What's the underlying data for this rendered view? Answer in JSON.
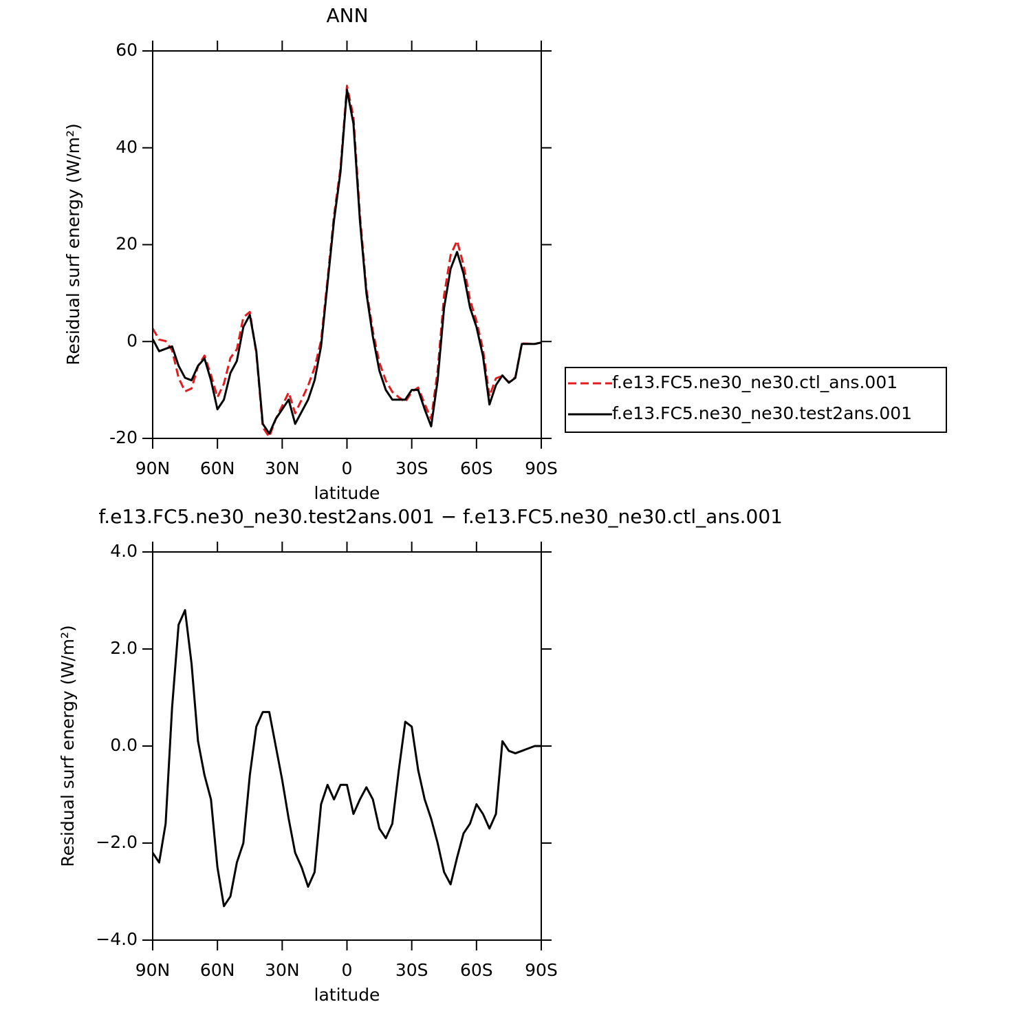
{
  "chart_data": [
    {
      "type": "line",
      "title": "ANN",
      "xlabel": "latitude",
      "ylabel": "Residual surf energy (W/m²)",
      "x": [
        90,
        87,
        84,
        81,
        78,
        75,
        72,
        69,
        66,
        63,
        60,
        57,
        54,
        51,
        48,
        45,
        42,
        39,
        36,
        33,
        30,
        27,
        24,
        21,
        18,
        15,
        12,
        9,
        6,
        3,
        0,
        -3,
        -6,
        -9,
        -12,
        -15,
        -18,
        -21,
        -24,
        -27,
        -30,
        -33,
        -36,
        -39,
        -42,
        -45,
        -48,
        -51,
        -54,
        -57,
        -60,
        -63,
        -66,
        -69,
        -72,
        -75,
        -78,
        -81,
        -84,
        -87,
        -90
      ],
      "xlim": [
        90,
        -90
      ],
      "xticks": [
        {
          "value": 90,
          "label": "90N"
        },
        {
          "value": 60,
          "label": "60N"
        },
        {
          "value": 30,
          "label": "30N"
        },
        0,
        {
          "value": -30,
          "label": "30S"
        },
        {
          "value": -60,
          "label": "60S"
        },
        {
          "value": -90,
          "label": "90S"
        }
      ],
      "ylim": [
        -20,
        60
      ],
      "yticks": [
        -20,
        0,
        20,
        40,
        60
      ],
      "legend": "right",
      "series": [
        {
          "name": "f.e13.FC5.ne30_ne30.ctl_ans.001",
          "color": "#e41a1c",
          "line_style": "dashed",
          "values": [
            2.7,
            0.4,
            0.1,
            -1.8,
            -7.5,
            -10.3,
            -9.7,
            -5.1,
            -2.9,
            -6.9,
            -11.5,
            -8.7,
            -3.4,
            -1.6,
            5,
            6.1,
            -2.4,
            -17.7,
            -19.7,
            -16,
            -13.3,
            -10.5,
            -14.8,
            -12,
            -9.1,
            -5.4,
            0.2,
            12.8,
            26.1,
            35.8,
            52.8,
            46.4,
            26.1,
            10.85,
            2.1,
            -4.3,
            -8.1,
            -10.4,
            -11.5,
            -12.5,
            -10.4,
            -9.5,
            -12.9,
            -16,
            -6,
            9.6,
            17.85,
            20.8,
            15.8,
            8.6,
            4.2,
            -1.6,
            -11.3,
            -7.6,
            -7.1,
            -8.4,
            -7.35,
            -0.4,
            -0.45,
            -0.5,
            -0.2
          ]
        },
        {
          "name": "f.e13.FC5.ne30_ne30.test2ans.001",
          "color": "#000000",
          "line_style": "solid",
          "values": [
            0.5,
            -2,
            -1.5,
            -1,
            -5,
            -7.5,
            -8,
            -5,
            -3.5,
            -8,
            -14,
            -12,
            -6.5,
            -4,
            3,
            5.5,
            -2,
            -17,
            -19,
            -16,
            -14,
            -12,
            -17,
            -14.5,
            -12,
            -8,
            -1,
            12,
            25,
            35,
            52,
            45,
            25,
            10,
            1,
            -6,
            -10,
            -12,
            -12,
            -12,
            -10,
            -10,
            -14,
            -17.5,
            -8,
            7,
            15,
            18.5,
            14,
            7,
            3,
            -3,
            -13,
            -9,
            -7,
            -8.5,
            -7.5,
            -0.5,
            -0.5,
            -0.5,
            -0.2
          ]
        }
      ]
    },
    {
      "type": "line",
      "title": "f.e13.FC5.ne30_ne30.test2ans.001 − f.e13.FC5.ne30_ne30.ctl_ans.001",
      "xlabel": "latitude",
      "ylabel": "Residual surf energy (W/m²)",
      "x": [
        90,
        87,
        84,
        81,
        78,
        75,
        72,
        69,
        66,
        63,
        60,
        57,
        54,
        51,
        48,
        45,
        42,
        39,
        36,
        33,
        30,
        27,
        24,
        21,
        18,
        15,
        12,
        9,
        6,
        3,
        0,
        -3,
        -6,
        -9,
        -12,
        -15,
        -18,
        -21,
        -24,
        -27,
        -30,
        -33,
        -36,
        -39,
        -42,
        -45,
        -48,
        -51,
        -54,
        -57,
        -60,
        -63,
        -66,
        -69,
        -72,
        -75,
        -78,
        -81,
        -84,
        -87,
        -90
      ],
      "xlim": [
        90,
        -90
      ],
      "xticks": [
        {
          "value": 90,
          "label": "90N"
        },
        {
          "value": 60,
          "label": "60N"
        },
        {
          "value": 30,
          "label": "30N"
        },
        0,
        {
          "value": -30,
          "label": "30S"
        },
        {
          "value": -60,
          "label": "60S"
        },
        {
          "value": -90,
          "label": "90S"
        }
      ],
      "ylim": [
        -4,
        4
      ],
      "yticks": [
        {
          "value": -4,
          "label": "−4.0"
        },
        {
          "value": -2,
          "label": "−2.0"
        },
        {
          "value": 0,
          "label": "0.0"
        },
        {
          "value": 2,
          "label": "2.0"
        },
        {
          "value": 4,
          "label": "4.0"
        }
      ],
      "series": [
        {
          "color": "#000000",
          "line_style": "solid",
          "values": [
            -2.2,
            -2.4,
            -1.6,
            0.8,
            2.5,
            2.8,
            1.7,
            0.1,
            -0.6,
            -1.1,
            -2.5,
            -3.3,
            -3.1,
            -2.4,
            -2.0,
            -0.6,
            0.4,
            0.7,
            0.7,
            0.0,
            -0.7,
            -1.5,
            -2.2,
            -2.5,
            -2.9,
            -2.6,
            -1.2,
            -0.8,
            -1.1,
            -0.8,
            -0.8,
            -1.4,
            -1.1,
            -0.85,
            -1.1,
            -1.7,
            -1.9,
            -1.6,
            -0.5,
            0.5,
            0.4,
            -0.5,
            -1.1,
            -1.5,
            -2.0,
            -2.6,
            -2.85,
            -2.3,
            -1.8,
            -1.6,
            -1.2,
            -1.4,
            -1.7,
            -1.4,
            0.1,
            -0.1,
            -0.15,
            -0.1,
            -0.05,
            0,
            0
          ]
        }
      ]
    }
  ]
}
